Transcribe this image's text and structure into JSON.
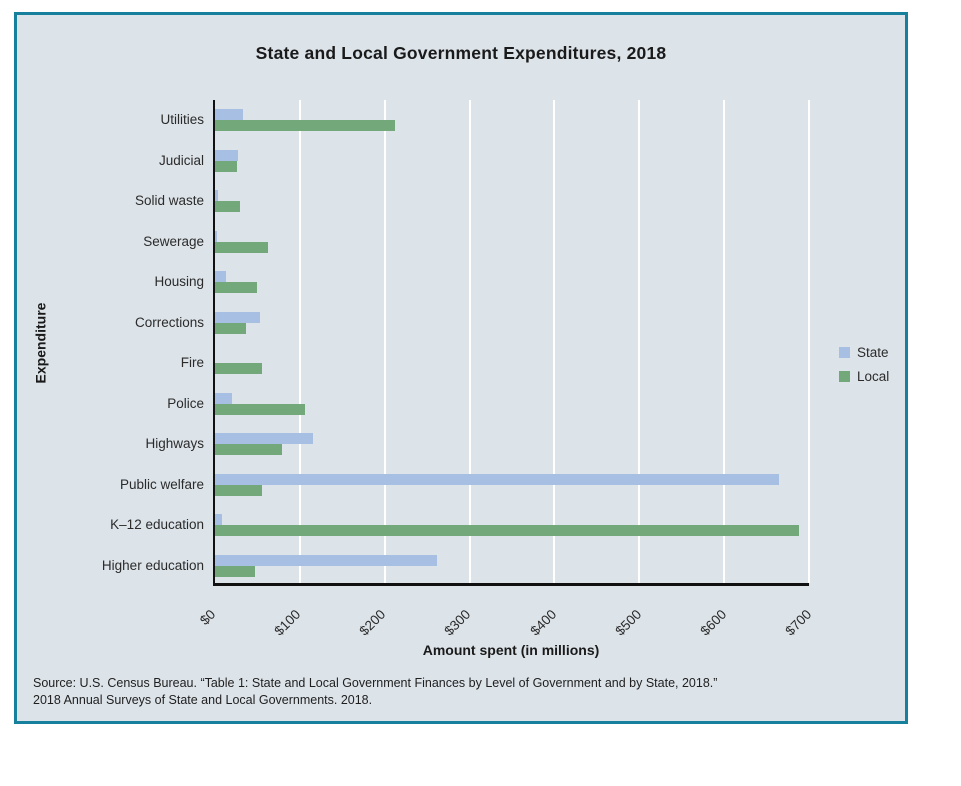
{
  "chart_data": {
    "type": "bar",
    "orientation": "horizontal",
    "title": "State and Local Government Expenditures, 2018",
    "xlabel": "Amount spent (in millions)",
    "ylabel": "Expenditure",
    "xlim": [
      0,
      700
    ],
    "grid": "vertical-white-lines",
    "legend_position": "right",
    "categories": [
      "Utilities",
      "Judicial",
      "Solid waste",
      "Sewerage",
      "Housing",
      "Corrections",
      "Fire",
      "Police",
      "Highways",
      "Public welfare",
      "K–12 education",
      "Higher education"
    ],
    "series": [
      {
        "name": "State",
        "color": "#a8bfe4",
        "values": [
          33,
          27,
          4,
          2,
          13,
          53,
          0,
          20,
          115,
          665,
          8,
          262
        ]
      },
      {
        "name": "Local",
        "color": "#73a87b",
        "values": [
          212,
          26,
          29,
          62,
          49,
          36,
          55,
          106,
          79,
          55,
          688,
          47
        ]
      }
    ],
    "ticks": [
      {
        "label": "$0",
        "value": 0
      },
      {
        "label": "$100",
        "value": 100
      },
      {
        "label": "$200",
        "value": 200
      },
      {
        "label": "$300",
        "value": 300
      },
      {
        "label": "$400",
        "value": 400
      },
      {
        "label": "$500",
        "value": 500
      },
      {
        "label": "$600",
        "value": 600
      },
      {
        "label": "$700",
        "value": 700
      }
    ]
  },
  "theme": {
    "panel_background": "#dce3e9",
    "panel_border": "#16809d",
    "gridline_color": "#ffffff",
    "axis_color": "#111111"
  },
  "source": {
    "line1": "Source: U.S. Census Bureau. “Table 1: State and Local Government Finances by Level of Government and by State, 2018.”",
    "line2": "2018 Annual Surveys of State and Local Governments. 2018."
  }
}
